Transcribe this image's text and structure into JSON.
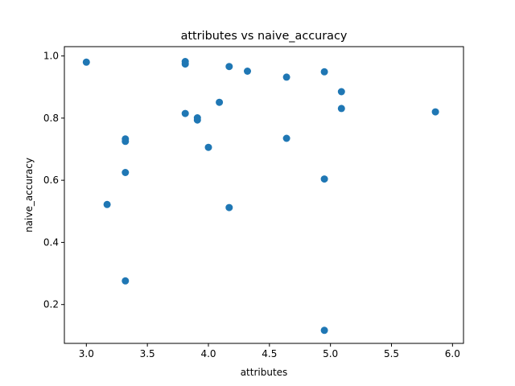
{
  "chart_data": {
    "type": "scatter",
    "title": "attributes vs naive_accuracy",
    "xlabel": "attributes",
    "ylabel": "naive_accuracy",
    "xlim": [
      2.82,
      6.09
    ],
    "ylim": [
      0.075,
      1.03
    ],
    "xticks": [
      3.0,
      3.5,
      4.0,
      4.5,
      5.0,
      5.5,
      6.0
    ],
    "xtick_labels": [
      "3.0",
      "3.5",
      "4.0",
      "4.5",
      "5.0",
      "5.5",
      "6.0"
    ],
    "yticks": [
      0.2,
      0.4,
      0.6,
      0.8,
      1.0
    ],
    "ytick_labels": [
      "0.2",
      "0.4",
      "0.6",
      "0.8",
      "1.0"
    ],
    "grid": false,
    "point_color": "#1f77b4",
    "points": [
      {
        "x": 3.0,
        "y": 0.98
      },
      {
        "x": 3.17,
        "y": 0.522
      },
      {
        "x": 3.32,
        "y": 0.733
      },
      {
        "x": 3.32,
        "y": 0.725
      },
      {
        "x": 3.32,
        "y": 0.625
      },
      {
        "x": 3.32,
        "y": 0.276
      },
      {
        "x": 3.81,
        "y": 0.982
      },
      {
        "x": 3.81,
        "y": 0.974
      },
      {
        "x": 3.81,
        "y": 0.815
      },
      {
        "x": 3.91,
        "y": 0.801
      },
      {
        "x": 3.91,
        "y": 0.794
      },
      {
        "x": 4.0,
        "y": 0.706
      },
      {
        "x": 4.09,
        "y": 0.851
      },
      {
        "x": 4.17,
        "y": 0.966
      },
      {
        "x": 4.17,
        "y": 0.512
      },
      {
        "x": 4.32,
        "y": 0.951
      },
      {
        "x": 4.64,
        "y": 0.932
      },
      {
        "x": 4.64,
        "y": 0.735
      },
      {
        "x": 4.95,
        "y": 0.949
      },
      {
        "x": 4.95,
        "y": 0.604
      },
      {
        "x": 4.95,
        "y": 0.117
      },
      {
        "x": 5.09,
        "y": 0.885
      },
      {
        "x": 5.09,
        "y": 0.831
      },
      {
        "x": 5.86,
        "y": 0.82
      }
    ]
  }
}
